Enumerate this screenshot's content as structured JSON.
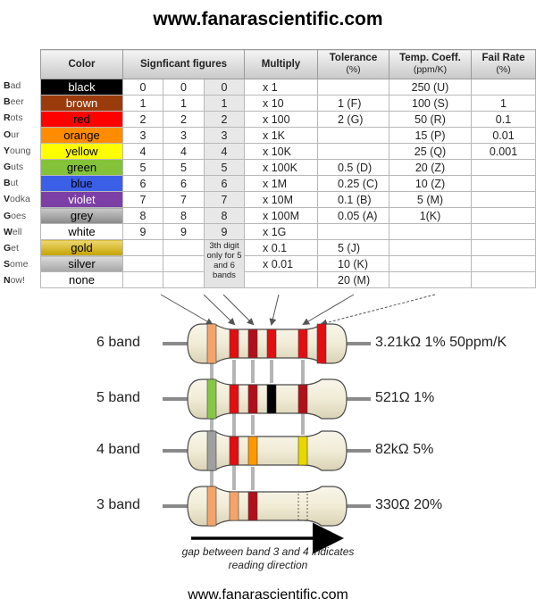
{
  "site_title": "www.fanarascientific.com",
  "site_footer": "www.fanarascientific.com",
  "headers": {
    "color": "Color",
    "significant": "Signficant figures",
    "multiply": "Multiply",
    "tolerance": "Tolerance",
    "tolerance_unit": "(%)",
    "temp": "Temp. Coeff.",
    "temp_unit": "(ppm/K)",
    "fail": "Fail Rate",
    "fail_unit": "(%)"
  },
  "third_digit_note": "3th digit only for 5 and 6 bands",
  "rows": [
    {
      "mnemonic_first": "B",
      "mnemonic_rest": "ad",
      "color": "black",
      "swatch": "#000000",
      "text_color": "#ffffff",
      "d1": "0",
      "d2": "0",
      "d3": "0",
      "mult": "x 1",
      "tol": "",
      "temp": "250 (U)",
      "fail": ""
    },
    {
      "mnemonic_first": "B",
      "mnemonic_rest": "eer",
      "color": "brown",
      "swatch": "#9a3b0c",
      "text_color": "#ffffff",
      "d1": "1",
      "d2": "1",
      "d3": "1",
      "mult": "x 10",
      "tol": "1 (F)",
      "temp": "100 (S)",
      "fail": "1"
    },
    {
      "mnemonic_first": "R",
      "mnemonic_rest": "ots",
      "color": "red",
      "swatch": "#ff0000",
      "text_color": "#000000",
      "d1": "2",
      "d2": "2",
      "d3": "2",
      "mult": "x 100",
      "tol": "2 (G)",
      "temp": "50 (R)",
      "fail": "0.1"
    },
    {
      "mnemonic_first": "O",
      "mnemonic_rest": "ur",
      "color": "orange",
      "swatch": "#ff8c00",
      "text_color": "#000000",
      "d1": "3",
      "d2": "3",
      "d3": "3",
      "mult": "x 1K",
      "tol": "",
      "temp": "15 (P)",
      "fail": "0.01"
    },
    {
      "mnemonic_first": "Y",
      "mnemonic_rest": "oung",
      "color": "yellow",
      "swatch": "#ffff00",
      "text_color": "#000000",
      "d1": "4",
      "d2": "4",
      "d3": "4",
      "mult": "x 10K",
      "tol": "",
      "temp": "25 (Q)",
      "fail": "0.001"
    },
    {
      "mnemonic_first": "G",
      "mnemonic_rest": "uts",
      "color": "green",
      "swatch": "#84c23a",
      "text_color": "#000000",
      "d1": "5",
      "d2": "5",
      "d3": "5",
      "mult": "x 100K",
      "tol": "0.5 (D)",
      "temp": "20 (Z)",
      "fail": ""
    },
    {
      "mnemonic_first": "B",
      "mnemonic_rest": "ut",
      "color": "blue",
      "swatch": "#3c5fe8",
      "text_color": "#000000",
      "d1": "6",
      "d2": "6",
      "d3": "6",
      "mult": "x 1M",
      "tol": "0.25 (C)",
      "temp": "10 (Z)",
      "fail": ""
    },
    {
      "mnemonic_first": "V",
      "mnemonic_rest": "odka",
      "color": "violet",
      "swatch": "#7b3fa6",
      "text_color": "#ffffff",
      "d1": "7",
      "d2": "7",
      "d3": "7",
      "mult": "x 10M",
      "tol": "0.1 (B)",
      "temp": "5 (M)",
      "fail": ""
    },
    {
      "mnemonic_first": "G",
      "mnemonic_rest": "oes",
      "color": "grey",
      "swatch": "#9d9d9d",
      "text_color": "#000000",
      "d1": "8",
      "d2": "8",
      "d3": "8",
      "mult": "x 100M",
      "tol": "0.05 (A)",
      "temp": "1(K)",
      "fail": ""
    },
    {
      "mnemonic_first": "W",
      "mnemonic_rest": "ell",
      "color": "white",
      "swatch": "#ffffff",
      "text_color": "#000000",
      "d1": "9",
      "d2": "9",
      "d3": "9",
      "mult": "x 1G",
      "tol": "",
      "temp": "",
      "fail": ""
    },
    {
      "mnemonic_first": "G",
      "mnemonic_rest": "et",
      "color": "gold",
      "swatch": "#e0b800",
      "text_color": "#000000",
      "d1": "",
      "d2": "",
      "d3": "",
      "mult": "x 0.1",
      "tol": "5 (J)",
      "temp": "",
      "fail": ""
    },
    {
      "mnemonic_first": "S",
      "mnemonic_rest": "ome",
      "color": "silver",
      "swatch": "#bdbdbd",
      "text_color": "#000000",
      "d1": "",
      "d2": "",
      "d3": "",
      "mult": "x 0.01",
      "tol": "10 (K)",
      "temp": "",
      "fail": ""
    },
    {
      "mnemonic_first": "N",
      "mnemonic_rest": "ow!",
      "color": "none",
      "swatch": "#ffffff",
      "text_color": "#000000",
      "d1": "",
      "d2": "",
      "d3": "",
      "mult": "",
      "tol": "20 (M)",
      "temp": "",
      "fail": ""
    }
  ],
  "resistors": [
    {
      "label": "6 band",
      "value": "3.21kΩ 1% 50ppm/K",
      "bands": [
        "#f4a46a",
        "#e10e12",
        "#b0101a",
        "#e10e12",
        "#e10e12",
        "#e10e12"
      ]
    },
    {
      "label": "5 band",
      "value": "521Ω 1%",
      "bands": [
        "#86c846",
        "#e10e12",
        "#b0101a",
        "#000000",
        "#b0101a"
      ]
    },
    {
      "label": "4 band",
      "value": "82kΩ 5%",
      "bands": [
        "#9f9f9f",
        "#e10e12",
        "#ff9800",
        "#e8d800"
      ]
    },
    {
      "label": "3 band",
      "value": "330Ω 20%",
      "bands": [
        "#f4a46a",
        "#f4a46a",
        "#b0101a"
      ]
    }
  ],
  "reading_direction_note": "gap between band 3 and 4 indicates reading direction"
}
